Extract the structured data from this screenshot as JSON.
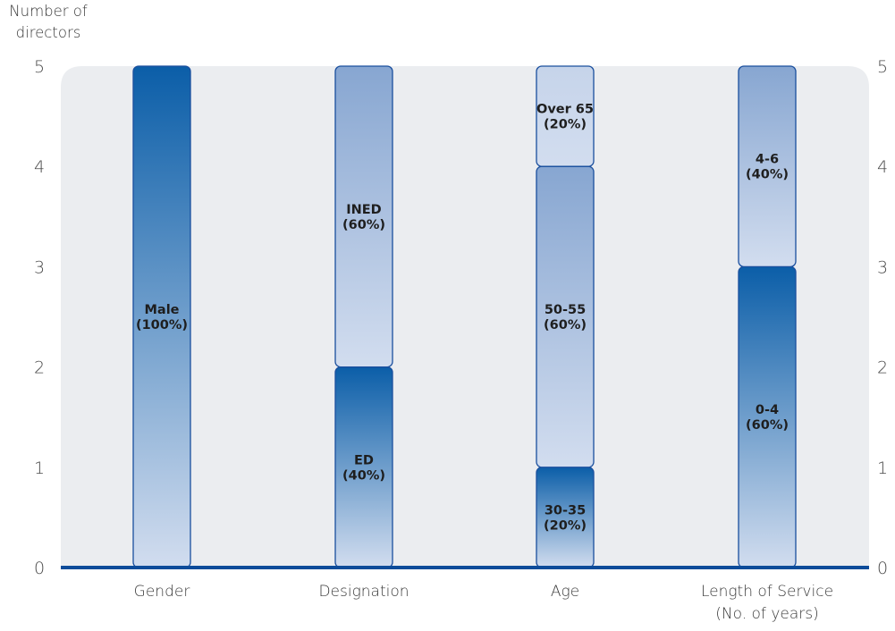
{
  "chart_data": {
    "type": "bar",
    "stacked": true,
    "ylabel": "Number of\ndirectors",
    "ylim": [
      0,
      5
    ],
    "yticks": [
      0,
      1,
      2,
      3,
      4,
      5
    ],
    "right_axis_ticks": true,
    "grid": false,
    "categories": [
      "Gender",
      "Designation",
      "Age",
      "Length of Service\n(No. of years)"
    ],
    "stacks": [
      {
        "category": "Gender",
        "segments": [
          {
            "label": "Male\n(100%)",
            "value": 5,
            "shade": "dark"
          }
        ]
      },
      {
        "category": "Designation",
        "segments": [
          {
            "label": "ED\n(40%)",
            "value": 2,
            "shade": "dark"
          },
          {
            "label": "INED\n(60%)",
            "value": 3,
            "shade": "medium"
          }
        ]
      },
      {
        "category": "Age",
        "segments": [
          {
            "label": "30-35\n(20%)",
            "value": 1,
            "shade": "dark"
          },
          {
            "label": "50-55\n(60%)",
            "value": 3,
            "shade": "medium"
          },
          {
            "label": "Over 65\n(20%)",
            "value": 1,
            "shade": "light"
          }
        ]
      },
      {
        "category": "Length of Service\n(No. of years)",
        "segments": [
          {
            "label": "0-4\n(60%)",
            "value": 3,
            "shade": "dark"
          },
          {
            "label": "4-6\n(40%)",
            "value": 2,
            "shade": "medium"
          }
        ]
      }
    ],
    "colors": {
      "panel": "#ebedf0",
      "baseline": "#0d4c9a",
      "bar_outline": "#1a4f9e",
      "dark_top": "#0b5ea8",
      "medium_top": "#87a6d1",
      "light_top": "#c6d4ea",
      "bottom": "#d2ddef"
    }
  }
}
